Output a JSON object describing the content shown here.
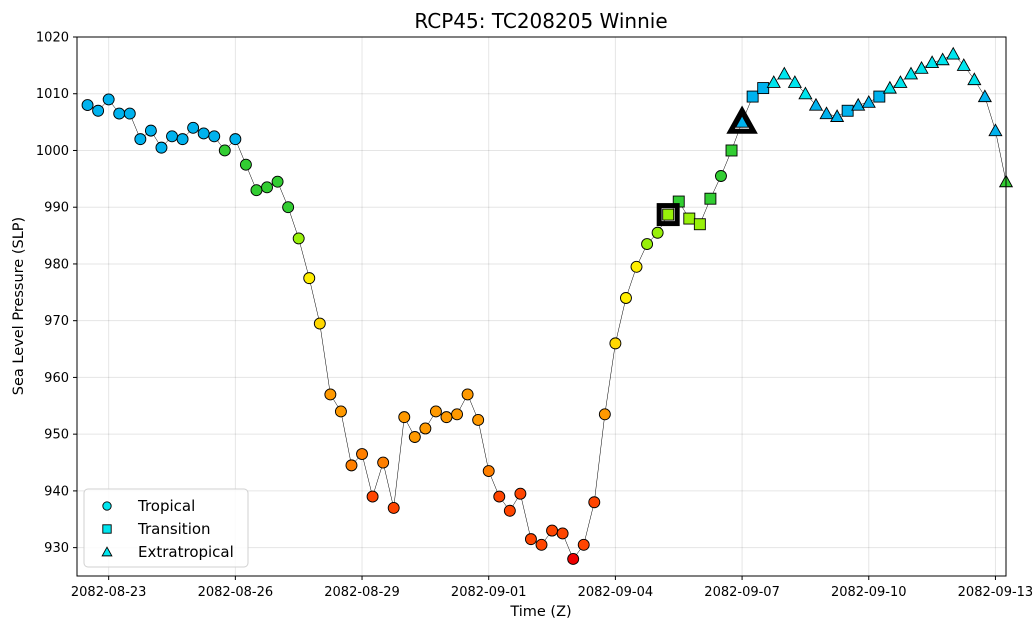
{
  "chart_data": {
    "type": "scatter",
    "title": "RCP45: TC208205 Winnie",
    "xlabel": "Time (Z)",
    "ylabel": "Sea Level Pressure (SLP)",
    "xlim": [
      "2082-08-22T06:00",
      "2082-09-13T06:00"
    ],
    "ylim": [
      925,
      1020
    ],
    "x_ticks": [
      "2082-08-23",
      "2082-08-26",
      "2082-08-29",
      "2082-09-01",
      "2082-09-04",
      "2082-09-07",
      "2082-09-10",
      "2082-09-13"
    ],
    "y_ticks": [
      930,
      940,
      950,
      960,
      970,
      980,
      990,
      1000,
      1010,
      1020
    ],
    "grid": true,
    "legend_position": "lower-left",
    "legend": [
      {
        "label": "Tropical",
        "marker": "circle",
        "color": "#00e5ee"
      },
      {
        "label": "Transition",
        "marker": "square",
        "color": "#00e5ee"
      },
      {
        "label": "Extratropical",
        "marker": "triangle",
        "color": "#00e5ee"
      }
    ],
    "marker_colors": {
      "deep-sky-blue": "#00b2ee",
      "cyan": "#00e5ee",
      "green": "#32cd32",
      "chartreuse": "#98f00a",
      "yellow": "#ffee00",
      "gold": "#ffd700",
      "orange": "#ff9900",
      "dark-orange": "#ff7f00",
      "orange-red": "#ff4500",
      "red": "#ee0000"
    },
    "highlighted_points": [
      {
        "time": "2082-09-05T06:00",
        "slp": 988.7,
        "marker": "square"
      },
      {
        "time": "2082-09-07T00:00",
        "slp": 1005.0,
        "marker": "triangle"
      }
    ],
    "points": [
      {
        "time": "2082-08-22T12:00",
        "slp": 1008.0,
        "marker": "circle",
        "color": "deep-sky-blue"
      },
      {
        "time": "2082-08-22T18:00",
        "slp": 1007.0,
        "marker": "circle",
        "color": "deep-sky-blue"
      },
      {
        "time": "2082-08-23T00:00",
        "slp": 1009.0,
        "marker": "circle",
        "color": "deep-sky-blue"
      },
      {
        "time": "2082-08-23T06:00",
        "slp": 1006.5,
        "marker": "circle",
        "color": "deep-sky-blue"
      },
      {
        "time": "2082-08-23T12:00",
        "slp": 1006.5,
        "marker": "circle",
        "color": "deep-sky-blue"
      },
      {
        "time": "2082-08-23T18:00",
        "slp": 1002.0,
        "marker": "circle",
        "color": "deep-sky-blue"
      },
      {
        "time": "2082-08-24T00:00",
        "slp": 1003.5,
        "marker": "circle",
        "color": "deep-sky-blue"
      },
      {
        "time": "2082-08-24T06:00",
        "slp": 1000.5,
        "marker": "circle",
        "color": "deep-sky-blue"
      },
      {
        "time": "2082-08-24T12:00",
        "slp": 1002.5,
        "marker": "circle",
        "color": "deep-sky-blue"
      },
      {
        "time": "2082-08-24T18:00",
        "slp": 1002.0,
        "marker": "circle",
        "color": "deep-sky-blue"
      },
      {
        "time": "2082-08-25T00:00",
        "slp": 1004.0,
        "marker": "circle",
        "color": "deep-sky-blue"
      },
      {
        "time": "2082-08-25T06:00",
        "slp": 1003.0,
        "marker": "circle",
        "color": "deep-sky-blue"
      },
      {
        "time": "2082-08-25T12:00",
        "slp": 1002.5,
        "marker": "circle",
        "color": "deep-sky-blue"
      },
      {
        "time": "2082-08-25T18:00",
        "slp": 1000.0,
        "marker": "circle",
        "color": "green"
      },
      {
        "time": "2082-08-26T00:00",
        "slp": 1002.0,
        "marker": "circle",
        "color": "deep-sky-blue"
      },
      {
        "time": "2082-08-26T06:00",
        "slp": 997.5,
        "marker": "circle",
        "color": "green"
      },
      {
        "time": "2082-08-26T12:00",
        "slp": 993.0,
        "marker": "circle",
        "color": "green"
      },
      {
        "time": "2082-08-26T18:00",
        "slp": 993.5,
        "marker": "circle",
        "color": "green"
      },
      {
        "time": "2082-08-27T00:00",
        "slp": 994.5,
        "marker": "circle",
        "color": "green"
      },
      {
        "time": "2082-08-27T06:00",
        "slp": 990.0,
        "marker": "circle",
        "color": "green"
      },
      {
        "time": "2082-08-27T12:00",
        "slp": 984.5,
        "marker": "circle",
        "color": "chartreuse"
      },
      {
        "time": "2082-08-27T18:00",
        "slp": 977.5,
        "marker": "circle",
        "color": "yellow"
      },
      {
        "time": "2082-08-28T00:00",
        "slp": 969.5,
        "marker": "circle",
        "color": "gold"
      },
      {
        "time": "2082-08-28T06:00",
        "slp": 957.0,
        "marker": "circle",
        "color": "orange"
      },
      {
        "time": "2082-08-28T12:00",
        "slp": 954.0,
        "marker": "circle",
        "color": "orange"
      },
      {
        "time": "2082-08-28T18:00",
        "slp": 944.5,
        "marker": "circle",
        "color": "dark-orange"
      },
      {
        "time": "2082-08-29T00:00",
        "slp": 946.5,
        "marker": "circle",
        "color": "dark-orange"
      },
      {
        "time": "2082-08-29T06:00",
        "slp": 939.0,
        "marker": "circle",
        "color": "orange-red"
      },
      {
        "time": "2082-08-29T12:00",
        "slp": 945.0,
        "marker": "circle",
        "color": "dark-orange"
      },
      {
        "time": "2082-08-29T18:00",
        "slp": 937.0,
        "marker": "circle",
        "color": "orange-red"
      },
      {
        "time": "2082-08-30T00:00",
        "slp": 953.0,
        "marker": "circle",
        "color": "orange"
      },
      {
        "time": "2082-08-30T06:00",
        "slp": 949.5,
        "marker": "circle",
        "color": "orange"
      },
      {
        "time": "2082-08-30T12:00",
        "slp": 951.0,
        "marker": "circle",
        "color": "orange"
      },
      {
        "time": "2082-08-30T18:00",
        "slp": 954.0,
        "marker": "circle",
        "color": "orange"
      },
      {
        "time": "2082-08-31T00:00",
        "slp": 953.0,
        "marker": "circle",
        "color": "orange"
      },
      {
        "time": "2082-08-31T06:00",
        "slp": 953.5,
        "marker": "circle",
        "color": "orange"
      },
      {
        "time": "2082-08-31T12:00",
        "slp": 957.0,
        "marker": "circle",
        "color": "orange"
      },
      {
        "time": "2082-08-31T18:00",
        "slp": 952.5,
        "marker": "circle",
        "color": "orange"
      },
      {
        "time": "2082-09-01T00:00",
        "slp": 943.5,
        "marker": "circle",
        "color": "dark-orange"
      },
      {
        "time": "2082-09-01T06:00",
        "slp": 939.0,
        "marker": "circle",
        "color": "orange-red"
      },
      {
        "time": "2082-09-01T12:00",
        "slp": 936.5,
        "marker": "circle",
        "color": "orange-red"
      },
      {
        "time": "2082-09-01T18:00",
        "slp": 939.5,
        "marker": "circle",
        "color": "orange-red"
      },
      {
        "time": "2082-09-02T00:00",
        "slp": 931.5,
        "marker": "circle",
        "color": "orange-red"
      },
      {
        "time": "2082-09-02T06:00",
        "slp": 930.5,
        "marker": "circle",
        "color": "orange-red"
      },
      {
        "time": "2082-09-02T12:00",
        "slp": 933.0,
        "marker": "circle",
        "color": "orange-red"
      },
      {
        "time": "2082-09-02T18:00",
        "slp": 932.5,
        "marker": "circle",
        "color": "orange-red"
      },
      {
        "time": "2082-09-03T00:00",
        "slp": 928.0,
        "marker": "circle",
        "color": "red"
      },
      {
        "time": "2082-09-03T06:00",
        "slp": 930.5,
        "marker": "circle",
        "color": "orange-red"
      },
      {
        "time": "2082-09-03T12:00",
        "slp": 938.0,
        "marker": "circle",
        "color": "orange-red"
      },
      {
        "time": "2082-09-03T18:00",
        "slp": 953.5,
        "marker": "circle",
        "color": "orange"
      },
      {
        "time": "2082-09-04T00:00",
        "slp": 966.0,
        "marker": "circle",
        "color": "gold"
      },
      {
        "time": "2082-09-04T06:00",
        "slp": 974.0,
        "marker": "circle",
        "color": "yellow"
      },
      {
        "time": "2082-09-04T12:00",
        "slp": 979.5,
        "marker": "circle",
        "color": "yellow"
      },
      {
        "time": "2082-09-04T18:00",
        "slp": 983.5,
        "marker": "circle",
        "color": "chartreuse"
      },
      {
        "time": "2082-09-05T00:00",
        "slp": 985.5,
        "marker": "circle",
        "color": "chartreuse"
      },
      {
        "time": "2082-09-05T06:00",
        "slp": 988.7,
        "marker": "square",
        "color": "chartreuse"
      },
      {
        "time": "2082-09-05T12:00",
        "slp": 991.0,
        "marker": "square",
        "color": "green"
      },
      {
        "time": "2082-09-05T18:00",
        "slp": 988.0,
        "marker": "square",
        "color": "chartreuse"
      },
      {
        "time": "2082-09-06T00:00",
        "slp": 987.0,
        "marker": "square",
        "color": "chartreuse"
      },
      {
        "time": "2082-09-06T06:00",
        "slp": 991.5,
        "marker": "square",
        "color": "green"
      },
      {
        "time": "2082-09-06T12:00",
        "slp": 995.5,
        "marker": "circle",
        "color": "green"
      },
      {
        "time": "2082-09-06T18:00",
        "slp": 1000.0,
        "marker": "square",
        "color": "green"
      },
      {
        "time": "2082-09-07T00:00",
        "slp": 1005.0,
        "marker": "triangle",
        "color": "deep-sky-blue"
      },
      {
        "time": "2082-09-07T06:00",
        "slp": 1009.5,
        "marker": "square",
        "color": "deep-sky-blue"
      },
      {
        "time": "2082-09-07T12:00",
        "slp": 1011.0,
        "marker": "square",
        "color": "deep-sky-blue"
      },
      {
        "time": "2082-09-07T18:00",
        "slp": 1012.0,
        "marker": "triangle",
        "color": "cyan"
      },
      {
        "time": "2082-09-08T00:00",
        "slp": 1013.5,
        "marker": "triangle",
        "color": "cyan"
      },
      {
        "time": "2082-09-08T06:00",
        "slp": 1012.0,
        "marker": "triangle",
        "color": "cyan"
      },
      {
        "time": "2082-09-08T12:00",
        "slp": 1010.0,
        "marker": "triangle",
        "color": "cyan"
      },
      {
        "time": "2082-09-08T18:00",
        "slp": 1008.0,
        "marker": "triangle",
        "color": "deep-sky-blue"
      },
      {
        "time": "2082-09-09T00:00",
        "slp": 1006.5,
        "marker": "triangle",
        "color": "deep-sky-blue"
      },
      {
        "time": "2082-09-09T06:00",
        "slp": 1006.0,
        "marker": "triangle",
        "color": "deep-sky-blue"
      },
      {
        "time": "2082-09-09T12:00",
        "slp": 1007.0,
        "marker": "square",
        "color": "deep-sky-blue"
      },
      {
        "time": "2082-09-09T18:00",
        "slp": 1008.0,
        "marker": "triangle",
        "color": "deep-sky-blue"
      },
      {
        "time": "2082-09-10T00:00",
        "slp": 1008.5,
        "marker": "triangle",
        "color": "deep-sky-blue"
      },
      {
        "time": "2082-09-10T06:00",
        "slp": 1009.5,
        "marker": "square",
        "color": "deep-sky-blue"
      },
      {
        "time": "2082-09-10T12:00",
        "slp": 1011.0,
        "marker": "triangle",
        "color": "cyan"
      },
      {
        "time": "2082-09-10T18:00",
        "slp": 1012.0,
        "marker": "triangle",
        "color": "cyan"
      },
      {
        "time": "2082-09-11T00:00",
        "slp": 1013.5,
        "marker": "triangle",
        "color": "cyan"
      },
      {
        "time": "2082-09-11T06:00",
        "slp": 1014.5,
        "marker": "triangle",
        "color": "cyan"
      },
      {
        "time": "2082-09-11T12:00",
        "slp": 1015.5,
        "marker": "triangle",
        "color": "cyan"
      },
      {
        "time": "2082-09-11T18:00",
        "slp": 1016.0,
        "marker": "triangle",
        "color": "cyan"
      },
      {
        "time": "2082-09-12T00:00",
        "slp": 1017.0,
        "marker": "triangle",
        "color": "cyan"
      },
      {
        "time": "2082-09-12T06:00",
        "slp": 1015.0,
        "marker": "triangle",
        "color": "cyan"
      },
      {
        "time": "2082-09-12T12:00",
        "slp": 1012.5,
        "marker": "triangle",
        "color": "cyan"
      },
      {
        "time": "2082-09-12T18:00",
        "slp": 1009.5,
        "marker": "triangle",
        "color": "deep-sky-blue"
      },
      {
        "time": "2082-09-13T00:00",
        "slp": 1003.5,
        "marker": "triangle",
        "color": "deep-sky-blue"
      },
      {
        "time": "2082-09-13T06:00",
        "slp": 994.5,
        "marker": "triangle",
        "color": "green"
      }
    ]
  }
}
